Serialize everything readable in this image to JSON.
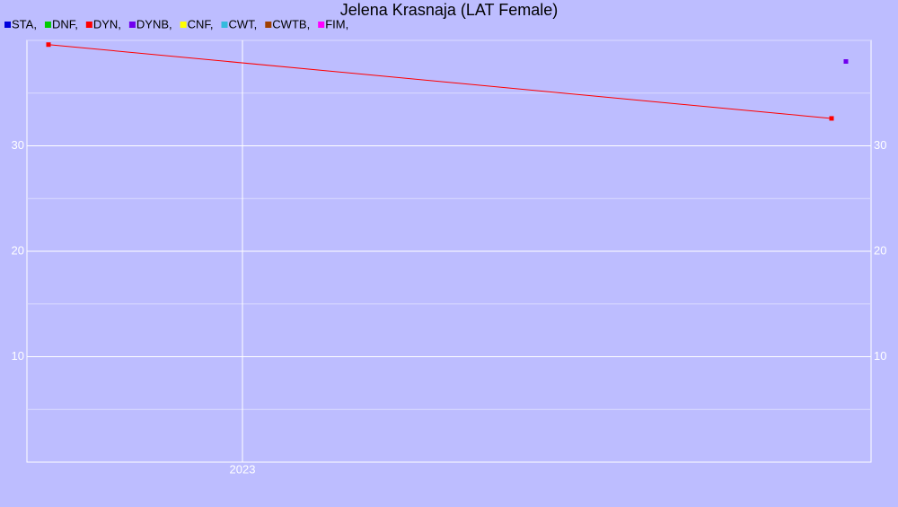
{
  "chart_data": {
    "type": "line",
    "title": "Jelena Krasnaja (LAT Female)",
    "xlim": [
      2022.7,
      2023.875
    ],
    "xticks": [
      2023
    ],
    "ylim": [
      0,
      40
    ],
    "yticks": [
      10,
      20,
      30
    ],
    "minor_yticks": [
      5,
      15,
      25,
      35,
      40
    ],
    "grid": true,
    "background": "#bdbdff",
    "series": [
      {
        "name": "STA,",
        "color": "#0000dd",
        "x": [],
        "values": []
      },
      {
        "name": "DNF,",
        "color": "#00cc00",
        "x": [],
        "values": []
      },
      {
        "name": "DYN,",
        "color": "#ff0000",
        "x": [
          2022.73,
          2023.82
        ],
        "values": [
          39.6,
          32.6
        ]
      },
      {
        "name": "DYNB,",
        "color": "#7000ee",
        "x": [
          2023.84
        ],
        "values": [
          38.0
        ]
      },
      {
        "name": "CNF,",
        "color": "#ffff00",
        "x": [],
        "values": []
      },
      {
        "name": "CWT,",
        "color": "#33bbdd",
        "x": [],
        "values": []
      },
      {
        "name": "CWTB,",
        "color": "#a04000",
        "x": [],
        "values": []
      },
      {
        "name": "FIM,",
        "color": "#ff00ff",
        "x": [],
        "values": []
      }
    ]
  }
}
